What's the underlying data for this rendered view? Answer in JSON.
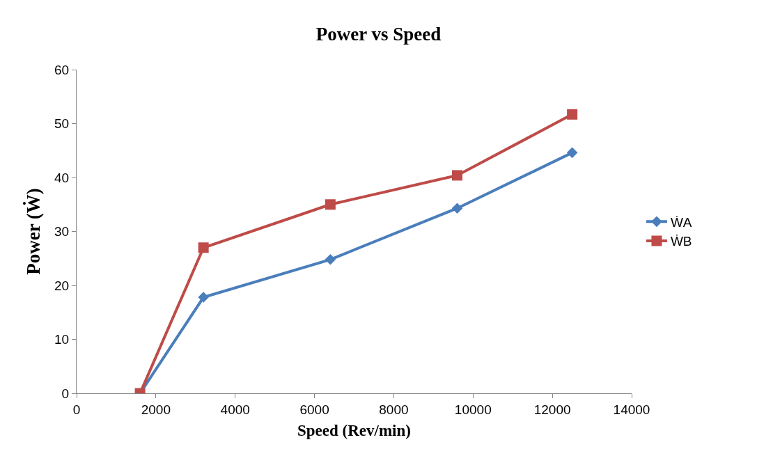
{
  "chart_data": {
    "type": "line",
    "title": "Power vs Speed",
    "xlabel": "Speed (Rev/min)",
    "ylabel": "Power (Ẇ)",
    "x": [
      1600,
      3200,
      6400,
      9600,
      12500
    ],
    "series": [
      {
        "name": "ẆA",
        "color": "#4a7ebb",
        "marker": "diamond",
        "values": [
          0,
          17.8,
          24.8,
          34.3,
          44.6
        ]
      },
      {
        "name": "ẆB",
        "color": "#be4b48",
        "marker": "square",
        "values": [
          0,
          27,
          35,
          40.4,
          51.7
        ]
      }
    ],
    "xlim": [
      0,
      14000
    ],
    "xticks": [
      0,
      2000,
      4000,
      6000,
      8000,
      10000,
      12000,
      14000
    ],
    "ylim": [
      0,
      60
    ],
    "yticks": [
      0,
      10,
      20,
      30,
      40,
      50,
      60
    ],
    "grid": false,
    "legend": "right",
    "line_style": "solid"
  }
}
